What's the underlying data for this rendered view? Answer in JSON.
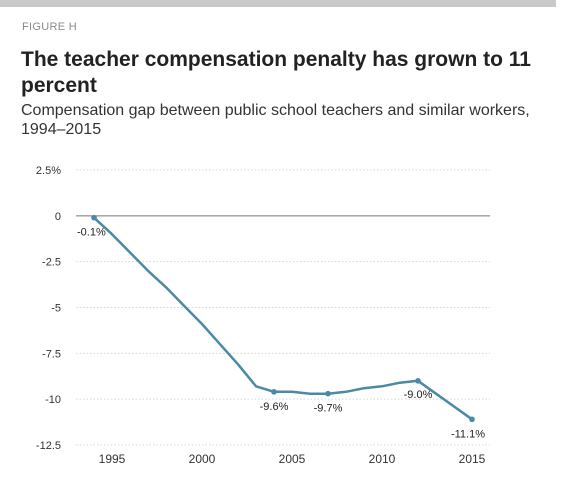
{
  "figure_label": "FIGURE H",
  "title": "The teacher compensation penalty has grown to 11 percent",
  "subtitle": "Compensation gap between public school teachers and similar workers, 1994–2015",
  "colors": {
    "line": "#4a8aa3",
    "zero_line": "#777777",
    "grid": "#d6d6d6",
    "top_bar": "#c9c9c9"
  },
  "chart_data": {
    "type": "line",
    "title": "The teacher compensation penalty has grown to 11 percent",
    "subtitle": "Compensation gap between public school teachers and similar workers, 1994–2015",
    "xlabel": "",
    "ylabel": "",
    "xlim": [
      1993,
      2016
    ],
    "ylim": [
      -12.5,
      2.5
    ],
    "x_ticks": [
      1995,
      2000,
      2005,
      2010,
      2015
    ],
    "y_ticks": [
      2.5,
      0,
      -2.5,
      -5,
      -7.5,
      -10,
      -12.5
    ],
    "y_tick_labels": [
      "2.5%",
      "0",
      "-2.5",
      "-5",
      "-7.5",
      "-10",
      "-12.5"
    ],
    "grid": "horizontal dotted",
    "series": [
      {
        "x": [
          1994,
          1995,
          1996,
          1997,
          1998,
          1999,
          2000,
          2001,
          2002,
          2003,
          2004,
          2005,
          2006,
          2007,
          2008,
          2009,
          2010,
          2011,
          2012,
          2013,
          2014,
          2015
        ],
        "values": [
          -0.1,
          -1.0,
          -2.0,
          -3.0,
          -3.9,
          -4.9,
          -5.9,
          -7.0,
          -8.1,
          -9.3,
          -9.6,
          -9.6,
          -9.7,
          -9.7,
          -9.6,
          -9.4,
          -9.3,
          -9.1,
          -9.0,
          -9.7,
          -10.4,
          -11.1
        ]
      }
    ],
    "data_labels": [
      {
        "x": 1994,
        "y": -0.1,
        "text": "-0.1%"
      },
      {
        "x": 2004,
        "y": -9.6,
        "text": "-9.6%"
      },
      {
        "x": 2007,
        "y": -9.7,
        "text": "-9.7%"
      },
      {
        "x": 2012,
        "y": -9.0,
        "text": "-9.0%"
      },
      {
        "x": 2015,
        "y": -11.1,
        "text": "-11.1%"
      }
    ]
  }
}
